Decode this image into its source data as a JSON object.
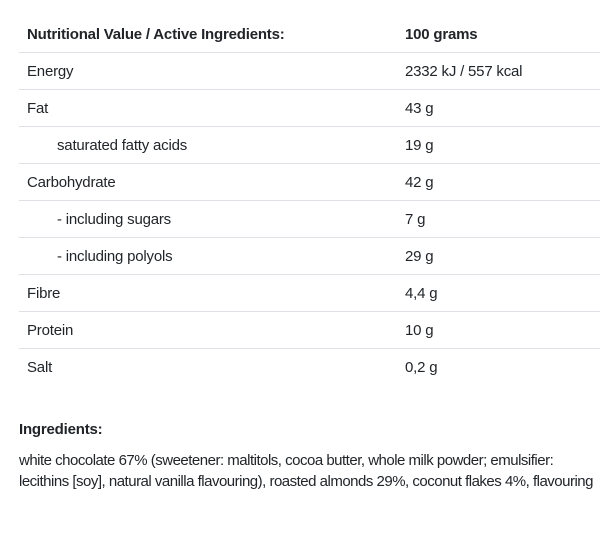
{
  "table": {
    "header": {
      "label": "Nutritional Value / Active Ingredients:",
      "amount": "100 grams"
    },
    "rows": [
      {
        "label": "Energy",
        "value": "2332 kJ / 557 kcal",
        "indent": false
      },
      {
        "label": "Fat",
        "value": "43 g",
        "indent": false
      },
      {
        "label": "saturated fatty acids",
        "value": "19 g",
        "indent": true
      },
      {
        "label": "Carbohydrate",
        "value": "42 g",
        "indent": false
      },
      {
        "label": "- including sugars",
        "value": "7 g",
        "indent": true
      },
      {
        "label": "- including polyols",
        "value": "29 g",
        "indent": true
      },
      {
        "label": "Fibre",
        "value": "4,4 g",
        "indent": false
      },
      {
        "label": "Protein",
        "value": "10 g",
        "indent": false
      },
      {
        "label": "Salt",
        "value": "0,2 g",
        "indent": false
      }
    ]
  },
  "ingredients": {
    "heading": "Ingredients:",
    "text": "white chocolate 67% (sweetener: maltitols, cocoa butter, whole milk powder; emulsifier: lecithins [soy], natural vanilla flavouring), roasted almonds 29%, coconut flakes 4%, flavouring"
  },
  "colors": {
    "text": "#212529",
    "divider": "#dee2e6",
    "background": "#ffffff"
  }
}
